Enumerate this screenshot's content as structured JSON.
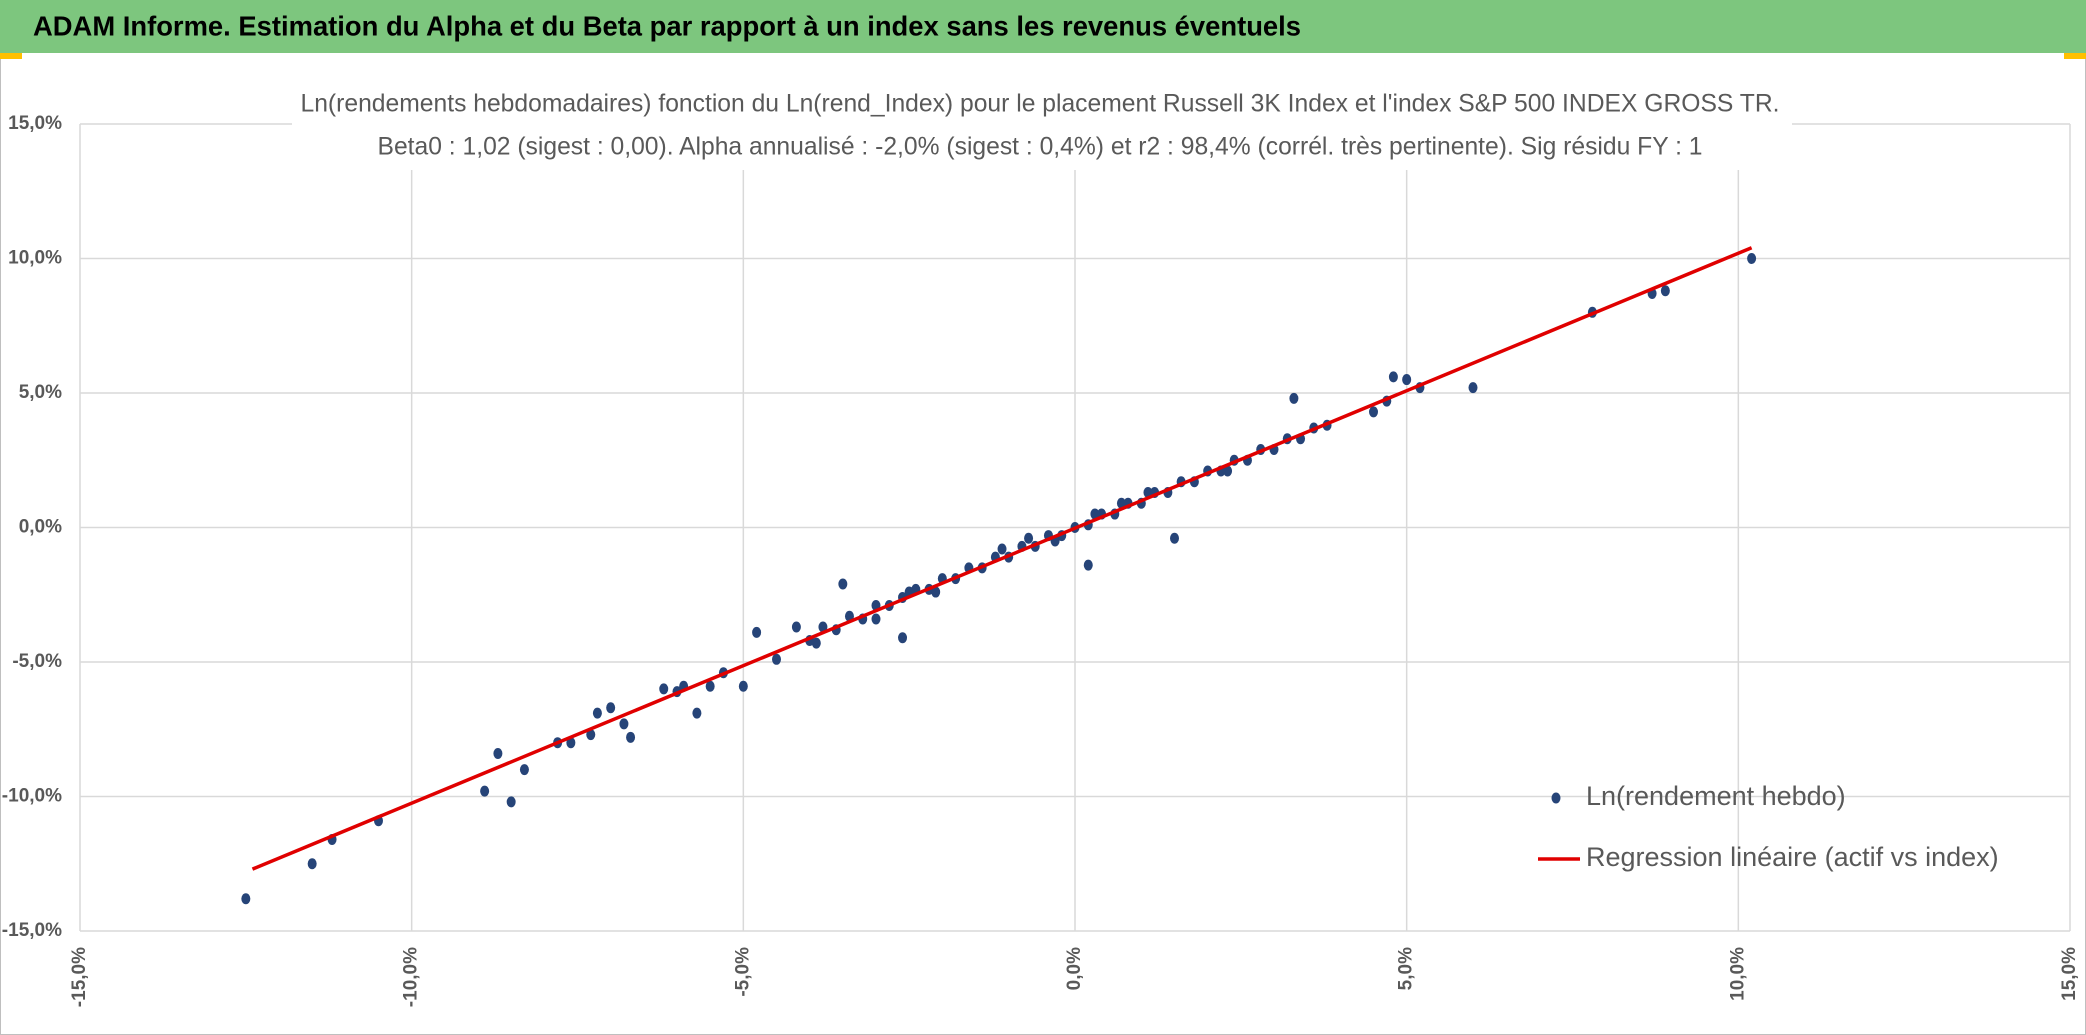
{
  "chart_data": {
    "type": "scatter",
    "title": "ADAM Informe. Estimation du Alpha et du Beta par rapport à un index sans les revenus éventuels",
    "subtitle": [
      "Ln(rendements hebdomadaires) fonction du Ln(rend_Index) pour le placement Russell 3K Index et l'index S&P 500 INDEX GROSS TR.",
      "Beta0 : 1,02 (sigest : 0,00). Alpha annualisé : -2,0% (sigest : 0,4%) et r2 : 98,4% (corrél. très pertinente). Sig résidu FY : 1"
    ],
    "xlim": [
      -15,
      15
    ],
    "ylim": [
      -15,
      15
    ],
    "xticks": [
      {
        "value": -15,
        "label": "-15,0%"
      },
      {
        "value": -10,
        "label": "-10,0%"
      },
      {
        "value": -5,
        "label": "-5,0%"
      },
      {
        "value": 0,
        "label": "0,0%"
      },
      {
        "value": 5,
        "label": "5,0%"
      },
      {
        "value": 10,
        "label": "10,0%"
      },
      {
        "value": 15,
        "label": "15,0%"
      }
    ],
    "yticks": [
      {
        "value": -15,
        "label": "-15,0%"
      },
      {
        "value": -10,
        "label": "-10,0%"
      },
      {
        "value": -5,
        "label": "-5,0%"
      },
      {
        "value": 0,
        "label": "0,0%"
      },
      {
        "value": 5,
        "label": "5,0%"
      },
      {
        "value": 10,
        "label": "10,0%"
      },
      {
        "value": 15,
        "label": "15,0%"
      }
    ],
    "grid": true,
    "legend": "lower right",
    "series": [
      {
        "name": "Ln(rendement hebdo)",
        "type": "scatter",
        "color": "#264478",
        "x": [
          -12.5,
          -11.5,
          -11.2,
          -10.5,
          -8.9,
          -8.7,
          -8.5,
          -8.3,
          -7.8,
          -7.6,
          -7.3,
          -7.2,
          -7.0,
          -6.8,
          -6.7,
          -6.2,
          -6.0,
          -5.9,
          -5.7,
          -5.5,
          -5.3,
          -5.0,
          -4.8,
          -4.5,
          -4.2,
          -3.9,
          -3.5,
          -3.0,
          -2.6,
          -2.5,
          0.2,
          1.5,
          3.3,
          4.5,
          4.7,
          4.8,
          5.0,
          5.2,
          6.0,
          7.8,
          8.7,
          8.9,
          10.2,
          -4.0,
          -3.8,
          -3.6,
          -3.4,
          -3.2,
          -3.0,
          -2.8,
          -2.6,
          -2.4,
          -2.2,
          -2.0,
          -1.8,
          -1.6,
          -1.4,
          -1.2,
          -1.0,
          -0.8,
          -0.6,
          -0.4,
          -0.2,
          0.0,
          0.2,
          0.4,
          0.6,
          0.8,
          1.0,
          1.2,
          1.4,
          1.6,
          1.8,
          2.0,
          2.2,
          2.4,
          2.6,
          2.8,
          3.0,
          3.2,
          3.4,
          3.6,
          3.8,
          -1.1,
          -0.3,
          0.3,
          1.1,
          -2.1,
          2.3,
          -0.7,
          0.7
        ],
        "values": [
          -13.8,
          -12.5,
          -11.6,
          -10.9,
          -9.8,
          -8.4,
          -10.2,
          -9.0,
          -8.0,
          -8.0,
          -7.7,
          -6.9,
          -6.7,
          -7.3,
          -7.8,
          -6.0,
          -6.1,
          -5.9,
          -6.9,
          -5.9,
          -5.4,
          -5.9,
          -3.9,
          -4.9,
          -3.7,
          -4.3,
          -2.1,
          -3.4,
          -4.1,
          -2.4,
          -1.4,
          -0.4,
          4.8,
          4.3,
          4.7,
          5.6,
          5.5,
          5.2,
          5.2,
          8.0,
          8.7,
          8.8,
          10.0,
          -4.2,
          -3.7,
          -3.8,
          -3.3,
          -3.4,
          -2.9,
          -2.9,
          -2.6,
          -2.3,
          -2.3,
          -1.9,
          -1.9,
          -1.5,
          -1.5,
          -1.1,
          -1.1,
          -0.7,
          -0.7,
          -0.3,
          -0.3,
          0.0,
          0.1,
          0.5,
          0.5,
          0.9,
          0.9,
          1.3,
          1.3,
          1.7,
          1.7,
          2.1,
          2.1,
          2.5,
          2.5,
          2.9,
          2.9,
          3.3,
          3.3,
          3.7,
          3.8,
          -0.8,
          -0.5,
          0.5,
          1.3,
          -2.4,
          2.1,
          -0.4,
          0.9
        ]
      },
      {
        "name": "Regression linéaire (actif vs index)",
        "type": "line",
        "color": "#e00000",
        "x": [
          -12.4,
          10.2
        ],
        "values": [
          -12.7,
          10.4
        ]
      }
    ]
  }
}
